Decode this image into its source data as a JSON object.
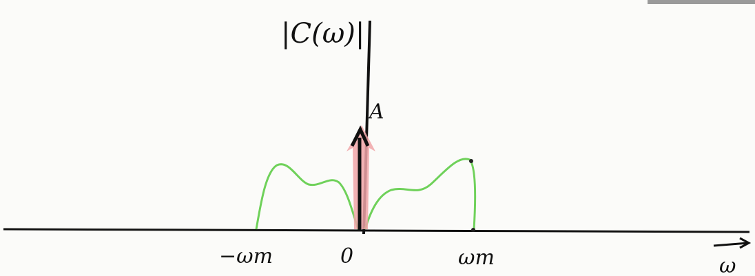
{
  "labels": {
    "y_axis": "|C(ω)|",
    "impulse": "A",
    "neg_wm": "−ωm",
    "origin": "0",
    "pos_wm": "ωm",
    "x_axis": "ω"
  }
}
